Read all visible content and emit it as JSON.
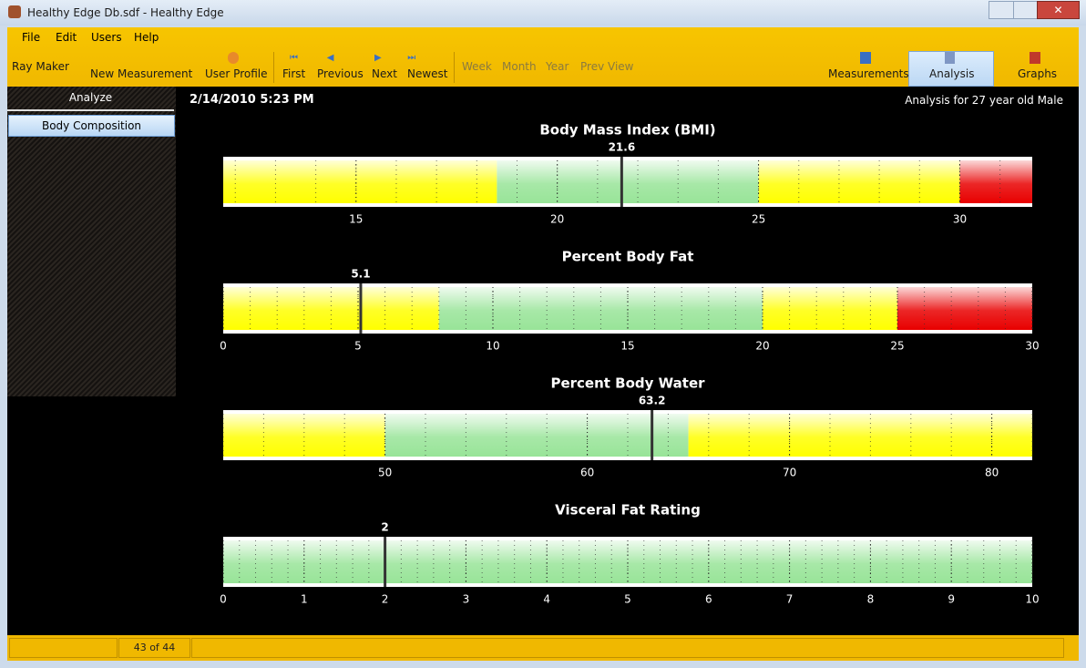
{
  "window": {
    "title": "Healthy Edge Db.sdf - Healthy Edge"
  },
  "menu": [
    "File",
    "Edit",
    "Users",
    "Help"
  ],
  "toolbar": {
    "user": "Ray Maker",
    "left": [
      "New Measurement",
      "User Profile",
      "First",
      "Previous",
      "Next",
      "Newest"
    ],
    "period": [
      "Week",
      "Month",
      "Year",
      "Prev View"
    ],
    "views": [
      "Measurements",
      "Analysis",
      "Graphs"
    ]
  },
  "sidebar": {
    "header": "Analyze",
    "items": [
      "Body Composition"
    ]
  },
  "header": {
    "date": "2/14/2010 5:23 PM",
    "analysis": "Analysis for 27 year old Male"
  },
  "status": {
    "record": "43 of 44"
  },
  "chart_data": [
    {
      "type": "gauge",
      "title": "Body Mass Index (BMI)",
      "value": 21.6,
      "xlim": [
        11.7,
        31.8
      ],
      "xticks": [
        15,
        20,
        25,
        30
      ],
      "zones": [
        {
          "from": 11.7,
          "to": 18.5,
          "color": "#ffff00"
        },
        {
          "from": 18.5,
          "to": 25,
          "color": "#98e498"
        },
        {
          "from": 25,
          "to": 30,
          "color": "#ffff00"
        },
        {
          "from": 30,
          "to": 31.8,
          "color": "#e80000"
        }
      ]
    },
    {
      "type": "gauge",
      "title": "Percent Body Fat",
      "value": 5.1,
      "xlim": [
        0,
        30
      ],
      "xticks": [
        0,
        5,
        10,
        15,
        20,
        25,
        30
      ],
      "zones": [
        {
          "from": 0,
          "to": 8,
          "color": "#ffff00"
        },
        {
          "from": 8,
          "to": 20,
          "color": "#98e498"
        },
        {
          "from": 20,
          "to": 25,
          "color": "#ffff00"
        },
        {
          "from": 25,
          "to": 30,
          "color": "#e80000"
        }
      ]
    },
    {
      "type": "gauge",
      "title": "Percent Body Water",
      "value": 63.2,
      "xlim": [
        42,
        82
      ],
      "xticks": [
        50,
        60,
        70,
        80
      ],
      "zones": [
        {
          "from": 42,
          "to": 50,
          "color": "#ffff00"
        },
        {
          "from": 50,
          "to": 65,
          "color": "#98e498"
        },
        {
          "from": 65,
          "to": 82,
          "color": "#ffff00"
        }
      ]
    },
    {
      "type": "gauge",
      "title": "Visceral Fat Rating",
      "value": 2,
      "xlim": [
        0,
        10
      ],
      "xticks": [
        0,
        1,
        2,
        3,
        4,
        5,
        6,
        7,
        8,
        9,
        10
      ],
      "zones": [
        {
          "from": 0,
          "to": 10,
          "color": "#98e498"
        }
      ]
    }
  ]
}
